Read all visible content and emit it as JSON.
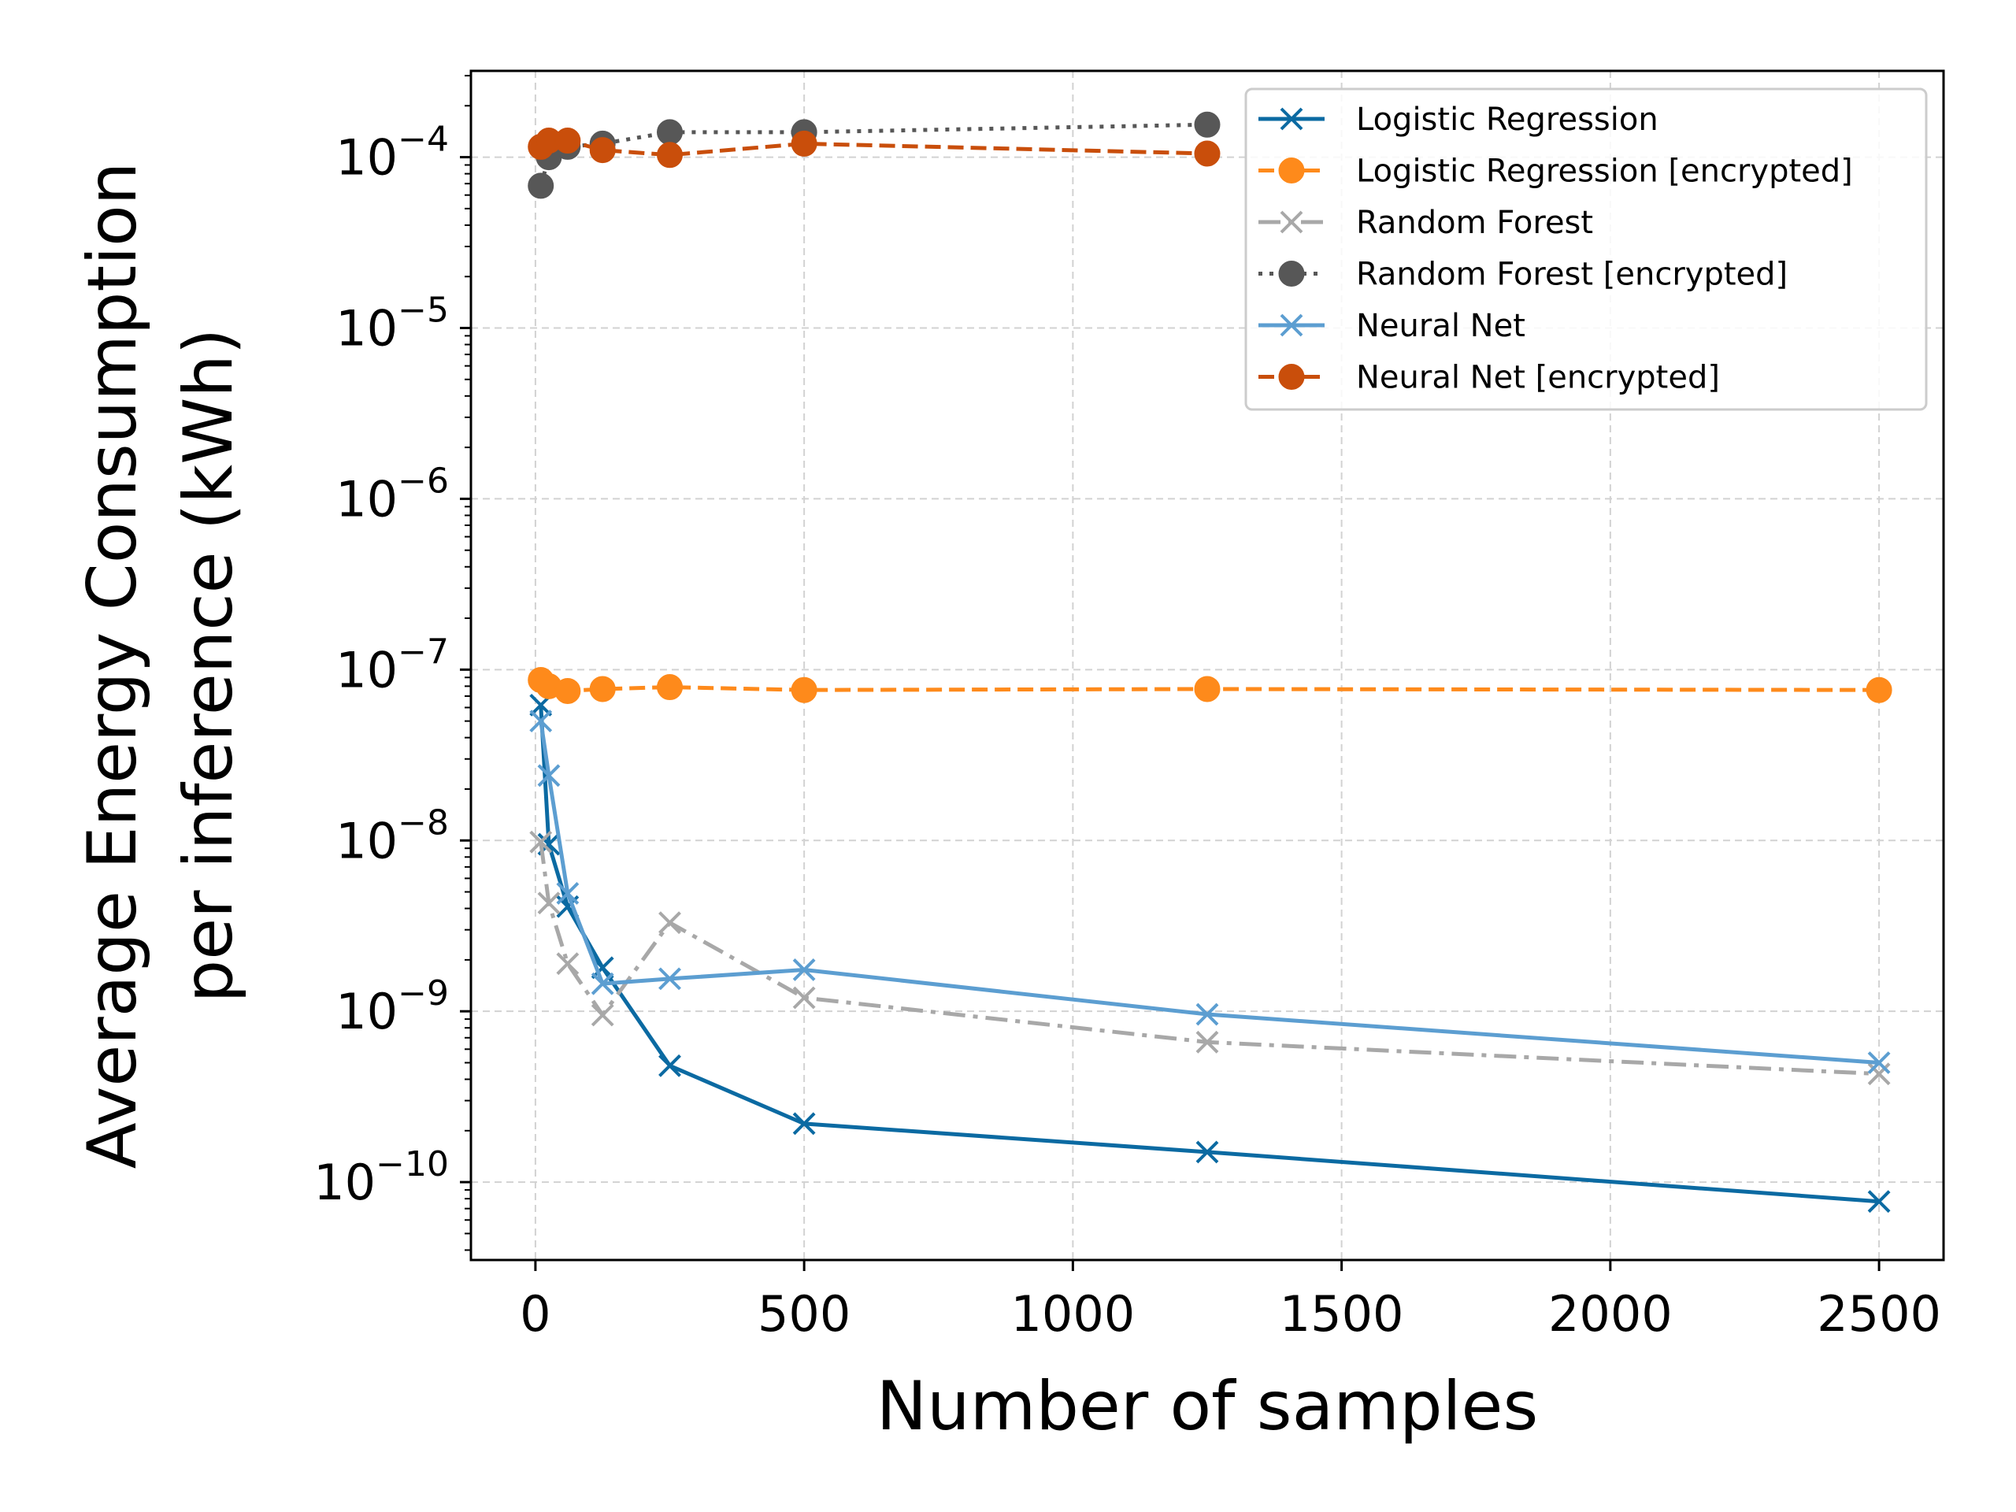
{
  "chart_data": {
    "type": "line",
    "title": "",
    "xlabel": "Number of samples",
    "ylabel": [
      "Average Energy Consumption",
      "per inference (kWh)"
    ],
    "xscale": "linear",
    "yscale": "log",
    "xlim": [
      -120,
      2620
    ],
    "ylim": [
      3.5e-11,
      0.00032
    ],
    "grid": true,
    "legend_position": "top-right",
    "xticks": [
      {
        "value": 0,
        "label": "0"
      },
      {
        "value": 500,
        "label": "500"
      },
      {
        "value": 1000,
        "label": "1000"
      },
      {
        "value": 1500,
        "label": "1500"
      },
      {
        "value": 2000,
        "label": "2000"
      },
      {
        "value": 2500,
        "label": "2500"
      }
    ],
    "yticks": [
      {
        "exp": -4,
        "base": "10",
        "sup": "−4"
      },
      {
        "exp": -5,
        "base": "10",
        "sup": "−5"
      },
      {
        "exp": -6,
        "base": "10",
        "sup": "−6"
      },
      {
        "exp": -7,
        "base": "10",
        "sup": "−7"
      },
      {
        "exp": -8,
        "base": "10",
        "sup": "−8"
      },
      {
        "exp": -9,
        "base": "10",
        "sup": "−9"
      },
      {
        "exp": -10,
        "base": "10",
        "sup": "−10"
      }
    ],
    "series": [
      {
        "name": "Logistic Regression",
        "color": "#0b6aa2",
        "marker": "x",
        "dash": "solid",
        "x": [
          10,
          25,
          60,
          125,
          250,
          500,
          1250,
          2500
        ],
        "y": [
          6.2e-08,
          9.5e-09,
          4.1e-09,
          1.8e-09,
          4.8e-10,
          2.2e-10,
          1.5e-10,
          7.7e-11
        ]
      },
      {
        "name": "Logistic Regression [encrypted]",
        "color": "#fe8a1b",
        "marker": "o",
        "dash": "dashed",
        "x": [
          10,
          25,
          60,
          125,
          250,
          500,
          1250,
          2500
        ],
        "y": [
          8.7e-08,
          8e-08,
          7.5e-08,
          7.7e-08,
          7.9e-08,
          7.6e-08,
          7.7e-08,
          7.6e-08
        ]
      },
      {
        "name": "Random Forest",
        "color": "#a8a8a8",
        "marker": "x",
        "dash": "dashdot",
        "x": [
          10,
          25,
          60,
          125,
          250,
          500,
          1250,
          2500
        ],
        "y": [
          9.8e-09,
          4.3e-09,
          1.9e-09,
          9.5e-10,
          3.3e-09,
          1.2e-09,
          6.6e-10,
          4.3e-10
        ]
      },
      {
        "name": "Random Forest [encrypted]",
        "color": "#575757",
        "marker": "o",
        "dash": "dotted",
        "x": [
          10,
          25,
          60,
          125,
          250,
          500,
          1250
        ],
        "y": [
          6.8e-05,
          0.0001,
          0.000115,
          0.00012,
          0.00014,
          0.00014,
          0.000155
        ]
      },
      {
        "name": "Neural Net",
        "color": "#5c9ed1",
        "marker": "x",
        "dash": "solid",
        "x": [
          10,
          25,
          60,
          125,
          250,
          500,
          1250,
          2500
        ],
        "y": [
          5e-08,
          2.4e-08,
          4.9e-09,
          1.45e-09,
          1.55e-09,
          1.75e-09,
          9.6e-10,
          5e-10
        ]
      },
      {
        "name": "Neural Net [encrypted]",
        "color": "#c94e0b",
        "marker": "o",
        "dash": "dashed",
        "x": [
          10,
          25,
          60,
          125,
          250,
          500,
          1250
        ],
        "y": [
          0.000115,
          0.000125,
          0.000125,
          0.00011,
          0.000103,
          0.00012,
          0.000105
        ]
      }
    ]
  }
}
